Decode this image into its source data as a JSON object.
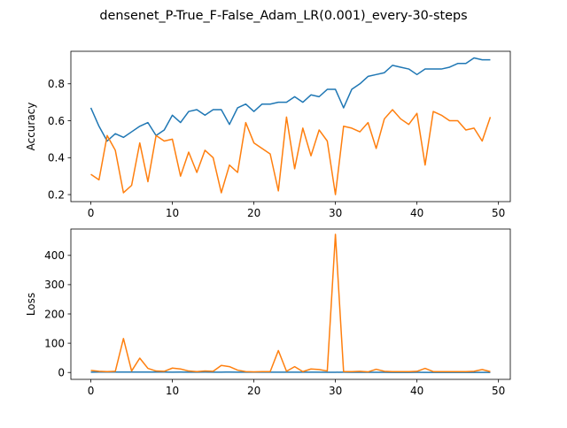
{
  "figure": {
    "title": "densenet_P-True_F-False_Adam_LR(0.001)_every-30-steps"
  },
  "colors": {
    "train": "#1f77b4",
    "val": "#ff7f0e"
  },
  "chart_data": [
    {
      "type": "line",
      "ylabel": "Accuracy",
      "xlim": [
        -2.45,
        51.45
      ],
      "ylim": [
        0.162,
        0.976
      ],
      "xticks": [
        0,
        10,
        20,
        30,
        40,
        50
      ],
      "yticks": [
        0.2,
        0.4,
        0.6,
        0.8
      ],
      "ytick_labels": [
        "0.2",
        "0.4",
        "0.6",
        "0.8"
      ],
      "x": [
        0,
        1,
        2,
        3,
        4,
        5,
        6,
        7,
        8,
        9,
        10,
        11,
        12,
        13,
        14,
        15,
        16,
        17,
        18,
        19,
        20,
        21,
        22,
        23,
        24,
        25,
        26,
        27,
        28,
        29,
        30,
        31,
        32,
        33,
        34,
        35,
        36,
        37,
        38,
        39,
        40,
        41,
        42,
        43,
        44,
        45,
        46,
        47,
        48,
        49
      ],
      "series": [
        {
          "color_key": "train",
          "values": [
            0.67,
            0.57,
            0.49,
            0.53,
            0.51,
            0.54,
            0.57,
            0.59,
            0.52,
            0.55,
            0.63,
            0.59,
            0.65,
            0.66,
            0.63,
            0.66,
            0.66,
            0.58,
            0.67,
            0.69,
            0.65,
            0.69,
            0.69,
            0.7,
            0.7,
            0.73,
            0.7,
            0.74,
            0.73,
            0.77,
            0.77,
            0.67,
            0.77,
            0.8,
            0.84,
            0.85,
            0.86,
            0.9,
            0.89,
            0.88,
            0.85,
            0.88,
            0.88,
            0.88,
            0.89,
            0.91,
            0.91,
            0.94,
            0.93,
            0.93
          ]
        },
        {
          "color_key": "val",
          "values": [
            0.31,
            0.28,
            0.52,
            0.44,
            0.21,
            0.25,
            0.48,
            0.27,
            0.52,
            0.49,
            0.5,
            0.3,
            0.43,
            0.32,
            0.44,
            0.4,
            0.21,
            0.36,
            0.32,
            0.59,
            0.48,
            0.45,
            0.42,
            0.22,
            0.62,
            0.34,
            0.56,
            0.41,
            0.55,
            0.49,
            0.2,
            0.57,
            0.56,
            0.54,
            0.59,
            0.45,
            0.61,
            0.66,
            0.61,
            0.58,
            0.64,
            0.36,
            0.65,
            0.63,
            0.6,
            0.6,
            0.55,
            0.56,
            0.49,
            0.62
          ]
        }
      ]
    },
    {
      "type": "line",
      "ylabel": "Loss",
      "xlim": [
        -2.45,
        51.45
      ],
      "ylim": [
        -23.5,
        490
      ],
      "xticks": [
        0,
        10,
        20,
        30,
        40,
        50
      ],
      "yticks": [
        0,
        100,
        200,
        300,
        400
      ],
      "ytick_labels": [
        "0",
        "100",
        "200",
        "300",
        "400"
      ],
      "x": [
        0,
        1,
        2,
        3,
        4,
        5,
        6,
        7,
        8,
        9,
        10,
        11,
        12,
        13,
        14,
        15,
        16,
        17,
        18,
        19,
        20,
        21,
        22,
        23,
        24,
        25,
        26,
        27,
        28,
        29,
        30,
        31,
        32,
        33,
        34,
        35,
        36,
        37,
        38,
        39,
        40,
        41,
        42,
        43,
        44,
        45,
        46,
        47,
        48,
        49
      ],
      "series": [
        {
          "color_key": "train",
          "values": [
            1.2,
            1.3,
            1.5,
            1.4,
            1.6,
            1.5,
            1.4,
            1.3,
            1.5,
            1.4,
            1.2,
            1.3,
            1.1,
            1.2,
            1.3,
            1.1,
            1.2,
            1.4,
            1.1,
            1.0,
            1.2,
            1.0,
            1.0,
            1.1,
            1.0,
            0.9,
            1.0,
            0.9,
            0.9,
            0.8,
            0.8,
            1.0,
            0.8,
            0.7,
            0.6,
            0.6,
            0.5,
            0.4,
            0.4,
            0.4,
            0.5,
            0.4,
            0.4,
            0.4,
            0.4,
            0.3,
            0.3,
            0.2,
            0.2,
            0.2
          ]
        },
        {
          "color_key": "val",
          "values": [
            7,
            4,
            3,
            4,
            116,
            5,
            49,
            14,
            5,
            4,
            15,
            12,
            5,
            3,
            5,
            4,
            24,
            20,
            8,
            3,
            2,
            3,
            3,
            75,
            4,
            20,
            3,
            12,
            10,
            5,
            472,
            3,
            3,
            4,
            2,
            11,
            4,
            3,
            3,
            3,
            4,
            14,
            3,
            3,
            3,
            3,
            3,
            4,
            10,
            3
          ]
        }
      ]
    }
  ]
}
